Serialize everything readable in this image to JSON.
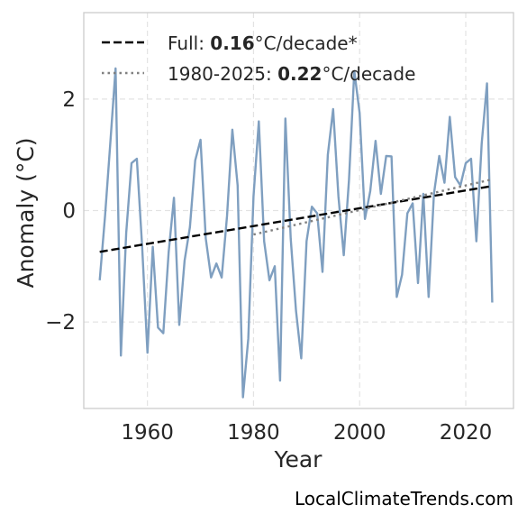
{
  "chart_data": {
    "type": "line",
    "xlabel": "Year",
    "ylabel": "Anomaly (°C)",
    "xlim": [
      1948,
      2029
    ],
    "ylim": [
      -3.55,
      3.55
    ],
    "x_ticks": [
      1960,
      1980,
      2000,
      2020
    ],
    "x_tick_labels": [
      "1960",
      "1980",
      "2000",
      "2020"
    ],
    "y_ticks": [
      -2,
      0,
      2
    ],
    "y_tick_labels": [
      "−2",
      "0",
      "2"
    ],
    "grid": true,
    "legend_position": "top-left",
    "series": [
      {
        "name": "",
        "style": "solid",
        "color": "#7f9fc0",
        "x": [
          1951,
          1952,
          1953,
          1954,
          1955,
          1956,
          1957,
          1958,
          1959,
          1960,
          1961,
          1962,
          1963,
          1964,
          1965,
          1966,
          1967,
          1968,
          1969,
          1970,
          1971,
          1972,
          1973,
          1974,
          1975,
          1976,
          1977,
          1978,
          1979,
          1980,
          1981,
          1982,
          1983,
          1984,
          1985,
          1986,
          1987,
          1988,
          1989,
          1990,
          1991,
          1992,
          1993,
          1994,
          1995,
          1996,
          1997,
          1998,
          1999,
          2000,
          2001,
          2002,
          2003,
          2004,
          2005,
          2006,
          2007,
          2008,
          2009,
          2010,
          2011,
          2012,
          2013,
          2014,
          2015,
          2016,
          2017,
          2018,
          2019,
          2020,
          2021,
          2022,
          2023,
          2024,
          2025
        ],
        "y": [
          -1.25,
          -0.1,
          1.2,
          2.55,
          -2.6,
          -0.4,
          0.85,
          0.93,
          -0.65,
          -2.55,
          -0.65,
          -2.1,
          -2.2,
          -0.75,
          0.23,
          -2.05,
          -0.9,
          -0.3,
          0.9,
          1.27,
          -0.5,
          -1.2,
          -0.95,
          -1.2,
          -0.1,
          1.45,
          0.45,
          -3.35,
          -2.3,
          0.25,
          1.6,
          -0.55,
          -1.25,
          -1.0,
          -3.05,
          1.65,
          -0.5,
          -1.8,
          -2.65,
          -0.55,
          0.07,
          -0.05,
          -1.1,
          1.0,
          1.82,
          0.25,
          -0.8,
          0.55,
          2.5,
          1.75,
          -0.15,
          0.35,
          1.25,
          0.3,
          0.98,
          0.97,
          -1.55,
          -1.15,
          -0.05,
          0.13,
          -1.3,
          0.3,
          -1.55,
          0.3,
          0.98,
          0.5,
          1.68,
          0.6,
          0.45,
          0.85,
          0.93,
          -0.55,
          1.2,
          2.28,
          -1.65
        ]
      },
      {
        "name": "Full",
        "style": "dashed",
        "color": "#000000",
        "x": [
          1951,
          2025
        ],
        "y": [
          -0.74,
          0.44
        ]
      },
      {
        "name": "1980-2025",
        "style": "dotted",
        "color": "#808080",
        "x": [
          1980,
          2025
        ],
        "y": [
          -0.43,
          0.56
        ]
      }
    ],
    "legend": [
      {
        "prefix": "Full: ",
        "value": "0.16",
        "suffix": "°C/decade*"
      },
      {
        "prefix": "1980-2025: ",
        "value": "0.22",
        "suffix": "°C/decade"
      }
    ]
  },
  "footer": {
    "attribution": "LocalClimateTrends.com"
  }
}
